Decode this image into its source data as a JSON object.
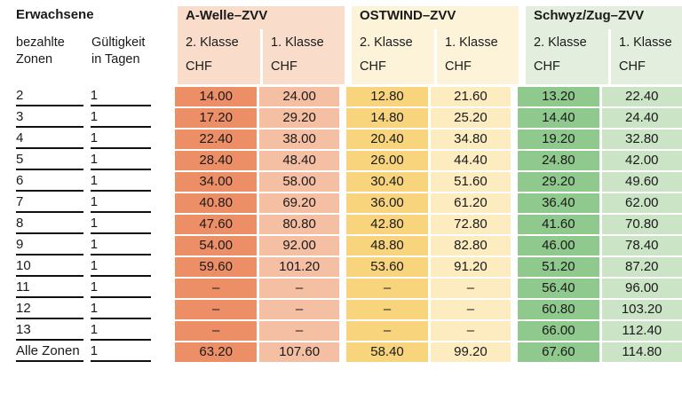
{
  "header": {
    "left_title": "Erwachsene",
    "col_zones": "bezahlte\nZonen",
    "col_validity": "Gültigkeit\nin Tagen",
    "currency_label": "CHF",
    "class2_label": "2. Klasse",
    "class1_label": "1. Klasse"
  },
  "groups": [
    {
      "title": "A-Welle–ZVV",
      "colors": {
        "header": "#f9dcc9",
        "class2": "#ec8e66",
        "class1": "#f5bfa4"
      }
    },
    {
      "title": "OSTWIND–ZVV",
      "colors": {
        "header": "#fdf3d9",
        "class2": "#f8d57c",
        "class1": "#fcecc0"
      }
    },
    {
      "title": "Schwyz/Zug–ZVV",
      "colors": {
        "header": "#e4eede",
        "class2": "#90c98e",
        "class1": "#cbe4c6"
      }
    }
  ],
  "text_color": "#1a1a1a",
  "rows": [
    {
      "zone": "2",
      "validity": "1",
      "values": [
        "14.00",
        "24.00",
        "12.80",
        "21.60",
        "13.20",
        "22.40"
      ]
    },
    {
      "zone": "3",
      "validity": "1",
      "values": [
        "17.20",
        "29.20",
        "14.80",
        "25.20",
        "14.40",
        "24.40"
      ]
    },
    {
      "zone": "4",
      "validity": "1",
      "values": [
        "22.40",
        "38.00",
        "20.40",
        "34.80",
        "19.20",
        "32.80"
      ]
    },
    {
      "zone": "5",
      "validity": "1",
      "values": [
        "28.40",
        "48.40",
        "26.00",
        "44.40",
        "24.80",
        "42.00"
      ]
    },
    {
      "zone": "6",
      "validity": "1",
      "values": [
        "34.00",
        "58.00",
        "30.40",
        "51.60",
        "29.20",
        "49.60"
      ]
    },
    {
      "zone": "7",
      "validity": "1",
      "values": [
        "40.80",
        "69.20",
        "36.00",
        "61.20",
        "36.40",
        "62.00"
      ]
    },
    {
      "zone": "8",
      "validity": "1",
      "values": [
        "47.60",
        "80.80",
        "42.80",
        "72.80",
        "41.60",
        "70.80"
      ]
    },
    {
      "zone": "9",
      "validity": "1",
      "values": [
        "54.00",
        "92.00",
        "48.80",
        "82.80",
        "46.00",
        "78.40"
      ]
    },
    {
      "zone": "10",
      "validity": "1",
      "values": [
        "59.60",
        "101.20",
        "53.60",
        "91.20",
        "51.20",
        "87.20"
      ]
    },
    {
      "zone": "11",
      "validity": "1",
      "values": [
        "–",
        "–",
        "–",
        "–",
        "56.40",
        "96.00"
      ]
    },
    {
      "zone": "12",
      "validity": "1",
      "values": [
        "–",
        "–",
        "–",
        "–",
        "60.80",
        "103.20"
      ]
    },
    {
      "zone": "13",
      "validity": "1",
      "values": [
        "–",
        "–",
        "–",
        "–",
        "66.00",
        "112.40"
      ]
    },
    {
      "zone": "Alle Zonen",
      "validity": "1",
      "values": [
        "63.20",
        "107.60",
        "58.40",
        "99.20",
        "67.60",
        "114.80"
      ]
    }
  ]
}
